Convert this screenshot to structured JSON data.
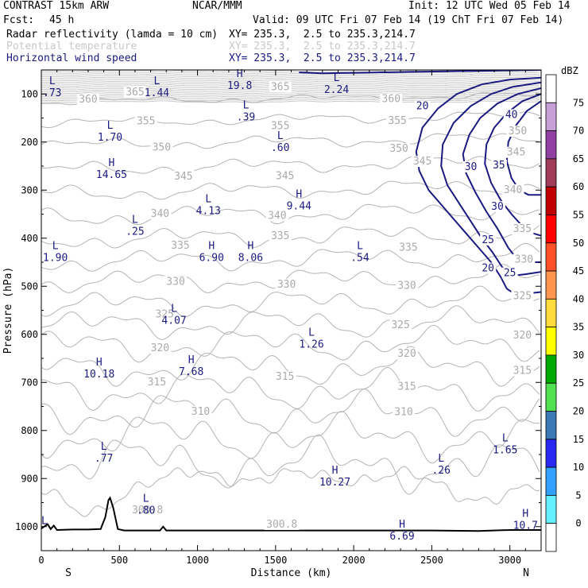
{
  "header": {
    "model": "CONTRAST 15km ARW",
    "org": "NCAR/MMM",
    "init": "Init: 12 UTC Wed 05 Feb 14",
    "fcst_label": "Fcst:",
    "fcst_value": "45 h",
    "valid": "Valid: 09 UTC Fri 07 Feb 14 (19 ChT Fri 07 Feb 14)",
    "fields": [
      {
        "name": "Radar reflectivity (lamda = 10 cm)",
        "xy": "XY= 235.3,  2.5 to 235.3,214.7"
      },
      {
        "name": "Potential temperature",
        "xy": "XY= 235.3,  2.5 to 235.3,214.7"
      },
      {
        "name": "Horizontal wind speed",
        "xy": "XY= 235.3,  2.5 to 235.3,214.7"
      }
    ]
  },
  "chart_data": {
    "type": "cross-section",
    "xlabel": "Distance (km)",
    "ylabel": "Pressure (hPa)",
    "xlim": [
      0,
      3200
    ],
    "ylim": [
      1050,
      50
    ],
    "x_ticks": [
      0,
      500,
      1000,
      1500,
      2000,
      2500,
      3000
    ],
    "y_ticks": [
      100,
      200,
      300,
      400,
      500,
      600,
      700,
      800,
      900,
      1000
    ],
    "end_labels": {
      "left": "S",
      "right": "N"
    },
    "theta_labels": [
      {
        "text": "360",
        "x": 300,
        "p": 118
      },
      {
        "text": "365",
        "x": 600,
        "p": 103
      },
      {
        "text": "365",
        "x": 1530,
        "p": 92
      },
      {
        "text": "360",
        "x": 2240,
        "p": 117
      },
      {
        "text": "355",
        "x": 670,
        "p": 163
      },
      {
        "text": "355",
        "x": 1530,
        "p": 173
      },
      {
        "text": "355",
        "x": 2280,
        "p": 162
      },
      {
        "text": "350",
        "x": 770,
        "p": 218
      },
      {
        "text": "350",
        "x": 2290,
        "p": 220
      },
      {
        "text": "350",
        "x": 3050,
        "p": 184
      },
      {
        "text": "345",
        "x": 910,
        "p": 278
      },
      {
        "text": "345",
        "x": 1560,
        "p": 277
      },
      {
        "text": "345",
        "x": 2440,
        "p": 247
      },
      {
        "text": "345",
        "x": 3040,
        "p": 228
      },
      {
        "text": "340",
        "x": 760,
        "p": 356
      },
      {
        "text": "340",
        "x": 1510,
        "p": 360
      },
      {
        "text": "340",
        "x": 3020,
        "p": 306
      },
      {
        "text": "335",
        "x": 890,
        "p": 422
      },
      {
        "text": "335",
        "x": 1530,
        "p": 402
      },
      {
        "text": "335",
        "x": 2350,
        "p": 426
      },
      {
        "text": "335",
        "x": 3080,
        "p": 387
      },
      {
        "text": "330",
        "x": 860,
        "p": 497
      },
      {
        "text": "330",
        "x": 1570,
        "p": 503
      },
      {
        "text": "330",
        "x": 2340,
        "p": 505
      },
      {
        "text": "330",
        "x": 3090,
        "p": 451
      },
      {
        "text": "325",
        "x": 790,
        "p": 565
      },
      {
        "text": "325",
        "x": 2300,
        "p": 587
      },
      {
        "text": "325",
        "x": 3080,
        "p": 527
      },
      {
        "text": "320",
        "x": 760,
        "p": 635
      },
      {
        "text": "320",
        "x": 2340,
        "p": 647
      },
      {
        "text": "320",
        "x": 3080,
        "p": 609
      },
      {
        "text": "315",
        "x": 740,
        "p": 706
      },
      {
        "text": "315",
        "x": 1560,
        "p": 695
      },
      {
        "text": "315",
        "x": 2340,
        "p": 715
      },
      {
        "text": "315",
        "x": 3080,
        "p": 682
      },
      {
        "text": "310",
        "x": 1020,
        "p": 767
      },
      {
        "text": "310",
        "x": 2320,
        "p": 768
      },
      {
        "text": "300.8",
        "x": 680,
        "p": 972
      },
      {
        "text": "300.8",
        "x": 1540,
        "p": 1002
      }
    ],
    "wind_contours": [
      {
        "value": 20,
        "x": [
          1650,
          1800,
          2000,
          2200,
          2400,
          2600,
          2800,
          3000,
          3200
        ],
        "p": [
          55,
          57,
          56,
          55,
          54,
          53,
          52,
          51,
          50
        ]
      },
      {
        "value": 20,
        "x": [
          3200,
          3000,
          2820,
          2660,
          2540,
          2440,
          2400,
          2420,
          2480,
          2560,
          2640,
          2720,
          2800,
          2880,
          2940,
          2980,
          3040,
          3120,
          3200
        ],
        "p": [
          66,
          70,
          80,
          100,
          130,
          170,
          220,
          260,
          300,
          330,
          360,
          390,
          420,
          450,
          480,
          505,
          518,
          515,
          512
        ]
      },
      {
        "value": 25,
        "x": [
          3200,
          3020,
          2880,
          2750,
          2640,
          2570,
          2560,
          2600,
          2680,
          2750,
          2820,
          2890,
          2950,
          3020,
          3100,
          3200
        ],
        "p": [
          76,
          85,
          100,
          125,
          160,
          205,
          250,
          290,
          330,
          365,
          400,
          430,
          460,
          478,
          475,
          470
        ]
      },
      {
        "value": 30,
        "x": [
          3200,
          3050,
          2920,
          2810,
          2740,
          2700,
          2720,
          2780,
          2850,
          2920,
          2990,
          3050,
          3130,
          3200
        ],
        "p": [
          88,
          100,
          120,
          150,
          185,
          225,
          265,
          305,
          345,
          380,
          420,
          445,
          450,
          450
        ]
      },
      {
        "value": 35,
        "x": [
          3200,
          3080,
          2980,
          2900,
          2850,
          2840,
          2880,
          2940,
          3010,
          3080,
          3150,
          3200
        ],
        "p": [
          100,
          115,
          140,
          170,
          205,
          245,
          285,
          320,
          350,
          375,
          390,
          395
        ]
      },
      {
        "value": 40,
        "x": [
          3200,
          3110,
          3040,
          2990,
          2980,
          3010,
          3060,
          3120,
          3200
        ],
        "p": [
          115,
          135,
          165,
          200,
          240,
          275,
          300,
          310,
          310
        ]
      }
    ],
    "wind_labels": [
      {
        "text": "20",
        "x": 2440,
        "p": 132
      },
      {
        "text": "20",
        "x": 2860,
        "p": 469
      },
      {
        "text": "25",
        "x": 2860,
        "p": 410
      },
      {
        "text": "25",
        "x": 3000,
        "p": 479
      },
      {
        "text": "30",
        "x": 2750,
        "p": 258
      },
      {
        "text": "30",
        "x": 2920,
        "p": 341
      },
      {
        "text": "35",
        "x": 2930,
        "p": 255
      },
      {
        "text": "40",
        "x": 3010,
        "p": 150
      }
    ],
    "lh_labels": [
      {
        "letter": "L",
        "value": ".73",
        "x": 70,
        "p": 80
      },
      {
        "letter": "L",
        "value": "1.44",
        "x": 740,
        "p": 80
      },
      {
        "letter": "H",
        "value": "19.8",
        "x": 1270,
        "p": 65
      },
      {
        "letter": "L",
        "value": "2.24",
        "x": 1890,
        "p": 73
      },
      {
        "letter": "L",
        "value": ".39",
        "x": 1310,
        "p": 130
      },
      {
        "letter": "L",
        "value": "1.70",
        "x": 440,
        "p": 172
      },
      {
        "letter": "L",
        "value": ".60",
        "x": 1530,
        "p": 194
      },
      {
        "letter": "H",
        "value": "14.65",
        "x": 450,
        "p": 250
      },
      {
        "letter": "L",
        "value": "4.13",
        "x": 1070,
        "p": 325
      },
      {
        "letter": "H",
        "value": "9.44",
        "x": 1650,
        "p": 315
      },
      {
        "letter": "L",
        "value": ".25",
        "x": 600,
        "p": 368
      },
      {
        "letter": "L",
        "value": "1.90",
        "x": 90,
        "p": 423
      },
      {
        "letter": "H",
        "value": "6.90",
        "x": 1090,
        "p": 423
      },
      {
        "letter": "H",
        "value": "8.06",
        "x": 1340,
        "p": 423
      },
      {
        "letter": "L",
        "value": ".54",
        "x": 2040,
        "p": 423
      },
      {
        "letter": "L",
        "value": "4.07",
        "x": 850,
        "p": 553
      },
      {
        "letter": "L",
        "value": "1.26",
        "x": 1730,
        "p": 603
      },
      {
        "letter": "H",
        "value": "10.18",
        "x": 370,
        "p": 665
      },
      {
        "letter": "H",
        "value": "7.68",
        "x": 960,
        "p": 660
      },
      {
        "letter": "L",
        "value": ".77",
        "x": 400,
        "p": 840
      },
      {
        "letter": "L",
        "value": "1.65",
        "x": 2970,
        "p": 823
      },
      {
        "letter": "L",
        "value": ".26",
        "x": 2560,
        "p": 865
      },
      {
        "letter": "H",
        "value": "10.27",
        "x": 1880,
        "p": 890
      },
      {
        "letter": "L",
        "value": ".80",
        "x": 670,
        "p": 948
      },
      {
        "letter": "H",
        "value": "6.69",
        "x": 2310,
        "p": 1002
      },
      {
        "letter": "H",
        "value": "10.7",
        "x": 3100,
        "p": 980
      },
      {
        "letter": "L",
        "value": "",
        "x": 20,
        "p": 995
      }
    ],
    "terrain": {
      "x": [
        0,
        40,
        60,
        80,
        100,
        200,
        300,
        380,
        410,
        430,
        440,
        460,
        490,
        530,
        600,
        760,
        780,
        800,
        1000,
        1500,
        2000,
        2500,
        2800,
        3000,
        3200
      ],
      "p": [
        1004,
        995,
        1005,
        998,
        1007,
        1006,
        1006,
        1005,
        980,
        945,
        940,
        960,
        1005,
        1008,
        1008,
        1008,
        1000,
        1008,
        1008,
        1008,
        1008,
        1008,
        1009,
        1007,
        1007
      ]
    },
    "colorbar": {
      "unit": "dBZ",
      "labels": [
        "75",
        "70",
        "65",
        "60",
        "55",
        "50",
        "45",
        "40",
        "35",
        "30",
        "25",
        "20",
        "15",
        "10",
        "5",
        "0"
      ],
      "colors": [
        "#ffffff",
        "#c8a0d8",
        "#9040a0",
        "#a03c5a",
        "#c00000",
        "#ff0000",
        "#ff5028",
        "#ff9650",
        "#ffdc3c",
        "#ffff00",
        "#00aa00",
        "#50e050",
        "#3c78b4",
        "#2828f0",
        "#32a0ff",
        "#64f0ff",
        "#ffffff"
      ]
    }
  }
}
